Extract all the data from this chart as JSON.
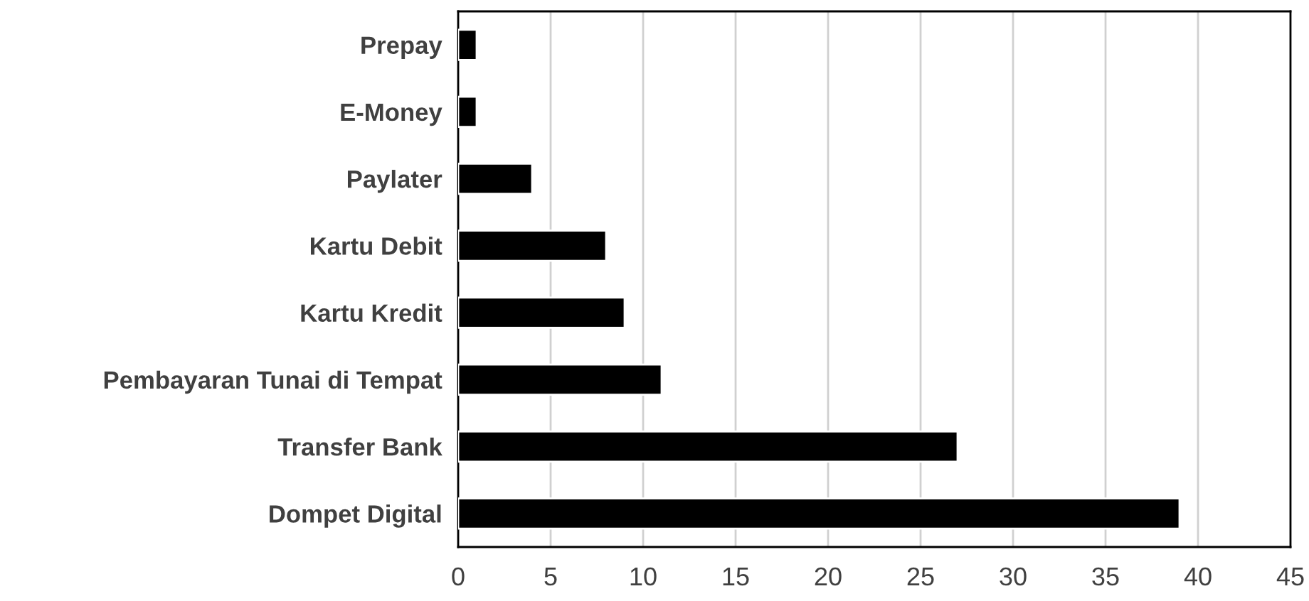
{
  "chart_data": {
    "type": "bar",
    "orientation": "horizontal",
    "categories": [
      "Prepay",
      "E-Money",
      "Paylater",
      "Kartu Debit",
      "Kartu Kredit",
      "Pembayaran Tunai di Tempat",
      "Transfer Bank",
      "Dompet Digital"
    ],
    "values": [
      1,
      1,
      4,
      8,
      9,
      11,
      27,
      39
    ],
    "color": "#000000",
    "xlim": [
      0,
      45
    ],
    "xticks": [
      0,
      5,
      10,
      15,
      20,
      25,
      30,
      35,
      40,
      45
    ],
    "grid": "x",
    "legend": false
  }
}
